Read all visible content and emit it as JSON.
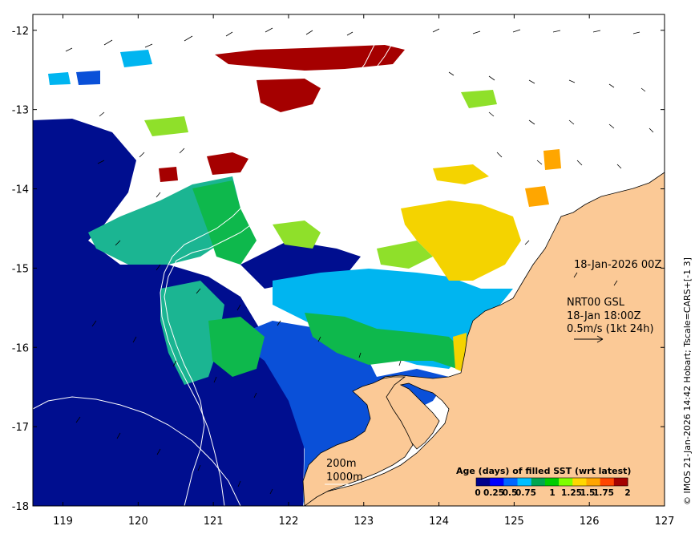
{
  "map": {
    "axes": {
      "lon_range": [
        118.6,
        127.0
      ],
      "lat_range": [
        -18.0,
        -11.8
      ],
      "lon_ticks": [
        "119",
        "120",
        "121",
        "122",
        "123",
        "124",
        "125",
        "126",
        "127"
      ],
      "lat_ticks": [
        "-12",
        "-13",
        "-14",
        "-15",
        "-16",
        "-17",
        "-18"
      ]
    },
    "labels": {
      "date": "18-Jan-2026 00Z",
      "current_source": "NRT00 GSL",
      "current_time": "18-Jan 18:00Z",
      "current_scale": "0.5m/s (1kt 24h)",
      "contour_200m": "200m",
      "contour_1000m": "1000m",
      "credit": "© IMOS 21-Jan-2026 14:42 Hobart; Tscale=CARS+[-1 3]"
    },
    "colorbar": {
      "title": "Age (days) of filled SST (wrt latest)",
      "ticks": [
        "0",
        "0.25",
        "0.5",
        "0.75",
        "1",
        "1.25",
        "1.5",
        "1.75",
        "2"
      ],
      "colors": [
        "#00008b",
        "#0000ff",
        "#0066ff",
        "#00bfff",
        "#00a650",
        "#00cc00",
        "#7fff00",
        "#ffd700",
        "#ffa500",
        "#ff4500",
        "#a50000"
      ]
    },
    "colors": {
      "land": "#fbc996",
      "ocean_nodata": "#ffffff",
      "age_0": "#000e8f",
      "age_025": "#0a50d8",
      "age_05": "#00b5f0",
      "age_075": "#1bb592",
      "age_1": "#0eb84c",
      "age_125": "#8fe02a",
      "age_15": "#f4d300",
      "age_175": "#ffa600",
      "age_2": "#a50000",
      "coastline": "#000000",
      "bathymetry": "#ffffff"
    }
  }
}
